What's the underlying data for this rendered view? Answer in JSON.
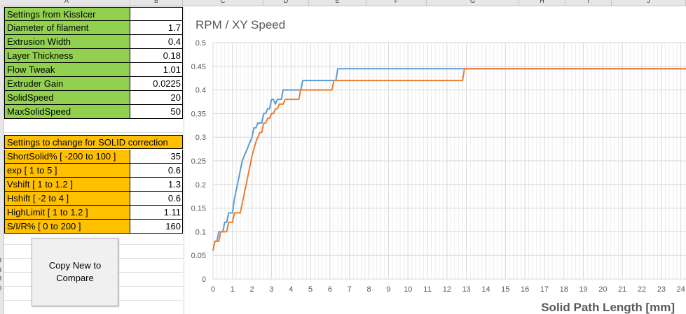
{
  "column_headers": [
    "A",
    "B",
    "C",
    "D",
    "E",
    "F",
    "G",
    "H",
    "I",
    "J"
  ],
  "row_numbers": [
    "3",
    "3",
    "9",
    "0"
  ],
  "settings_kisslcer": {
    "header": "Settings from KissIcer",
    "rows": [
      {
        "label": "Diameter of filament",
        "value": "1.7"
      },
      {
        "label": "Extrusion Width",
        "value": "0.4"
      },
      {
        "label": "Layer Thickness",
        "value": "0.18"
      },
      {
        "label": "Flow Tweak",
        "value": "1.01"
      },
      {
        "label": "Extruder Gain",
        "value": "0.0225"
      },
      {
        "label": "SolidSpeed",
        "value": "20"
      },
      {
        "label": "MaxSolidSpeed",
        "value": "50"
      }
    ]
  },
  "settings_solid": {
    "header": "Settings to change for SOLID correction",
    "rows": [
      {
        "label": "ShortSolid% [ -200 to 100 ]",
        "value": "35"
      },
      {
        "label": "exp [ 1 to 5 ]",
        "value": "0.6"
      },
      {
        "label": "Vshift [ 1 to 1.2 ]",
        "value": "1.3"
      },
      {
        "label": "Hshift [ -2 to 4 ]",
        "value": "0.6"
      },
      {
        "label": "HighLimit [ 1 to 1.2 ]",
        "value": "1.11"
      },
      {
        "label": "S/I/R% [ 0 to 200 ]",
        "value": "160"
      }
    ]
  },
  "copy_button_label": "Copy New to Compare",
  "colors": {
    "green": "#92d050",
    "orange": "#ffc000",
    "series_blue": "#5b9bd5",
    "series_orange": "#ed7d31"
  },
  "chart_data": {
    "type": "line",
    "title": "RPM / XY Speed",
    "xlabel": "Solid Path Length [mm]",
    "ylabel": "",
    "xlim": [
      0,
      24.3
    ],
    "ylim": [
      0,
      0.5
    ],
    "x_ticks": [
      0,
      1,
      2,
      3,
      4,
      5,
      6,
      7,
      8,
      9,
      10,
      11,
      12,
      13,
      14,
      15,
      16,
      17,
      18,
      19,
      20,
      21,
      22,
      23,
      24
    ],
    "y_ticks": [
      0,
      0.05,
      0.1,
      0.15,
      0.2,
      0.25,
      0.3,
      0.35,
      0.4,
      0.45,
      0.5
    ],
    "grid": true,
    "series": [
      {
        "color": "#5b9bd5",
        "points": [
          [
            0,
            0.06
          ],
          [
            0.1,
            0.08
          ],
          [
            0.2,
            0.08
          ],
          [
            0.3,
            0.1
          ],
          [
            0.5,
            0.1
          ],
          [
            0.6,
            0.12
          ],
          [
            0.7,
            0.12
          ],
          [
            0.8,
            0.14
          ],
          [
            1.0,
            0.14
          ],
          [
            1.1,
            0.17
          ],
          [
            1.3,
            0.21
          ],
          [
            1.5,
            0.25
          ],
          [
            1.8,
            0.28
          ],
          [
            2.0,
            0.3
          ],
          [
            2.1,
            0.32
          ],
          [
            2.2,
            0.32
          ],
          [
            2.3,
            0.33
          ],
          [
            2.5,
            0.33
          ],
          [
            2.6,
            0.35
          ],
          [
            2.7,
            0.35
          ],
          [
            2.8,
            0.36
          ],
          [
            2.9,
            0.36
          ],
          [
            3.0,
            0.38
          ],
          [
            3.1,
            0.38
          ],
          [
            3.2,
            0.37
          ],
          [
            3.3,
            0.38
          ],
          [
            3.5,
            0.38
          ],
          [
            3.6,
            0.4
          ],
          [
            4.5,
            0.4
          ],
          [
            4.6,
            0.42
          ],
          [
            6.3,
            0.42
          ],
          [
            6.4,
            0.445
          ],
          [
            24.3,
            0.445
          ]
        ]
      },
      {
        "color": "#ed7d31",
        "points": [
          [
            0,
            0.06
          ],
          [
            0.1,
            0.08
          ],
          [
            0.3,
            0.08
          ],
          [
            0.4,
            0.1
          ],
          [
            0.7,
            0.1
          ],
          [
            0.8,
            0.12
          ],
          [
            1.0,
            0.12
          ],
          [
            1.1,
            0.14
          ],
          [
            1.4,
            0.14
          ],
          [
            1.5,
            0.16
          ],
          [
            1.6,
            0.18
          ],
          [
            1.8,
            0.22
          ],
          [
            2.0,
            0.26
          ],
          [
            2.2,
            0.29
          ],
          [
            2.4,
            0.31
          ],
          [
            2.5,
            0.31
          ],
          [
            2.6,
            0.33
          ],
          [
            2.7,
            0.33
          ],
          [
            2.8,
            0.34
          ],
          [
            2.9,
            0.34
          ],
          [
            3.0,
            0.35
          ],
          [
            3.1,
            0.35
          ],
          [
            3.2,
            0.36
          ],
          [
            3.3,
            0.36
          ],
          [
            3.4,
            0.37
          ],
          [
            3.6,
            0.37
          ],
          [
            3.7,
            0.38
          ],
          [
            4.4,
            0.38
          ],
          [
            4.5,
            0.4
          ],
          [
            6.1,
            0.4
          ],
          [
            6.2,
            0.42
          ],
          [
            12.8,
            0.42
          ],
          [
            12.9,
            0.445
          ],
          [
            24.3,
            0.445
          ]
        ]
      }
    ]
  }
}
